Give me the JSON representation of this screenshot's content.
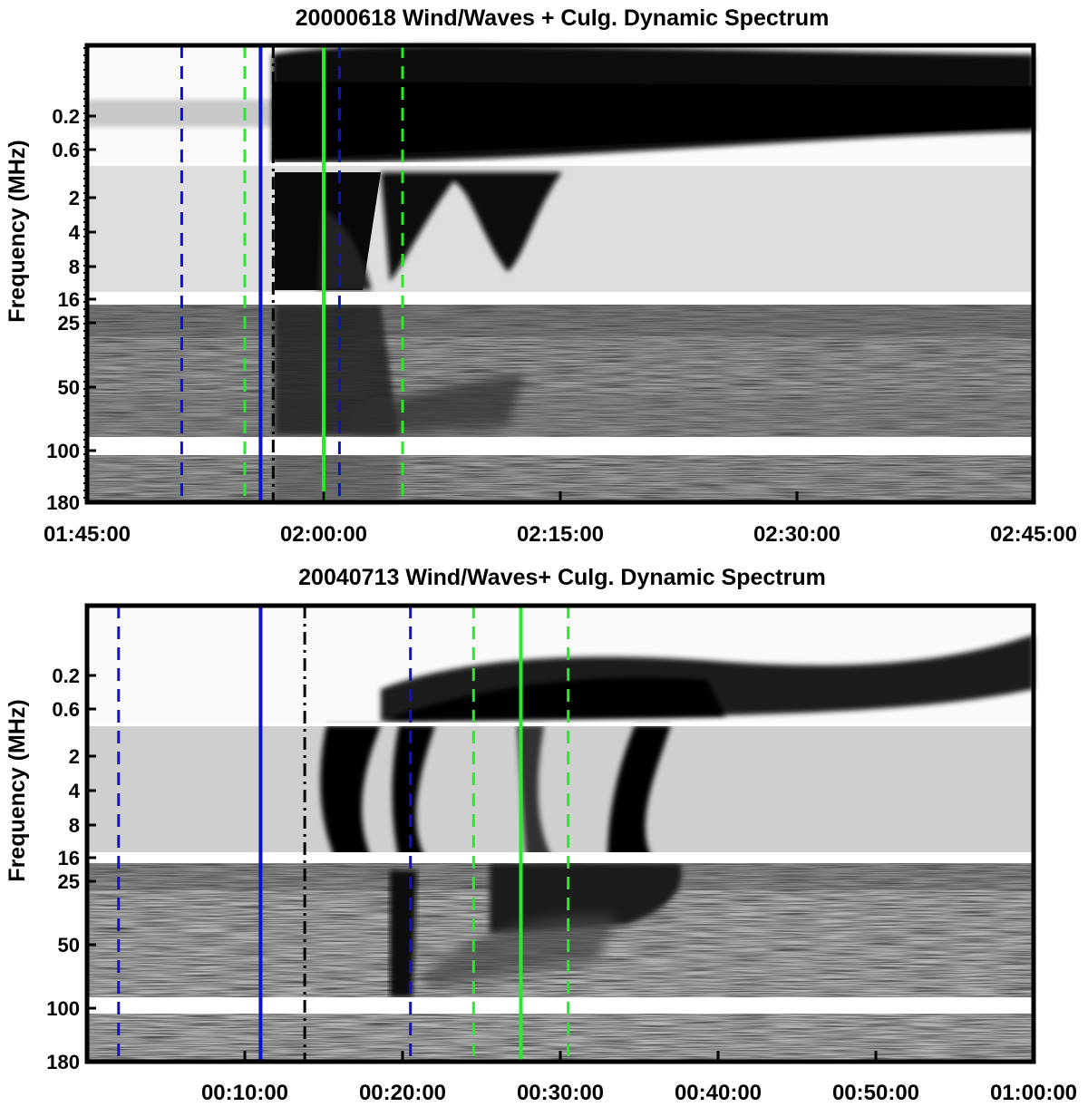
{
  "chart_data": [
    {
      "type": "heatmap",
      "title": "20000618 Wind/Waves + Culg. Dynamic Spectrum",
      "ylabel": "Frequency (MHz)",
      "xlabel": "",
      "x_tick_labels": [
        "01:45:00",
        "02:00:00",
        "02:15:00",
        "02:30:00",
        "02:45:00"
      ],
      "x_tick_minutes": [
        0,
        15,
        30,
        45,
        60
      ],
      "xlim_minutes": [
        0,
        60
      ],
      "y_tick_labels": [
        "0.2",
        "0.6",
        "2",
        "4",
        "8",
        "16",
        "25",
        "50",
        "100",
        "180"
      ],
      "colormap": "inverted grayscale",
      "vertical_lines": [
        {
          "time": "01:51:00",
          "minute": 6,
          "color": "#1010d0",
          "style": "dashed"
        },
        {
          "time": "01:55:00",
          "minute": 10,
          "color": "#22ee22",
          "style": "dashed"
        },
        {
          "time": "01:56:00",
          "minute": 11,
          "color": "#1010d0",
          "style": "solid"
        },
        {
          "time": "01:57:00",
          "minute": 11.8,
          "color": "#000000",
          "style": "dashdot"
        },
        {
          "time": "02:00:00",
          "minute": 15,
          "color": "#22ee22",
          "style": "solid"
        },
        {
          "time": "02:01:00",
          "minute": 16,
          "color": "#1010d0",
          "style": "dashed"
        },
        {
          "time": "02:05:00",
          "minute": 20,
          "color": "#22ee22",
          "style": "dashed"
        }
      ]
    },
    {
      "type": "heatmap",
      "title": "20040713 Wind/Waves+ Culg. Dynamic Spectrum",
      "ylabel": "Frequency (MHz)",
      "xlabel": "",
      "x_tick_labels": [
        "00:10:00",
        "00:20:00",
        "00:30:00",
        "00:40:00",
        "00:50:00",
        "01:00:00"
      ],
      "x_tick_minutes": [
        10,
        20,
        30,
        40,
        50,
        60
      ],
      "xlim_minutes": [
        0,
        60
      ],
      "y_tick_labels": [
        "0.2",
        "0.6",
        "2",
        "4",
        "8",
        "16",
        "25",
        "50",
        "100",
        "180"
      ],
      "colormap": "inverted grayscale",
      "vertical_lines": [
        {
          "time": "00:02:00",
          "minute": 2,
          "color": "#1010d0",
          "style": "dashed"
        },
        {
          "time": "00:11:00",
          "minute": 11,
          "color": "#1010d0",
          "style": "solid"
        },
        {
          "time": "00:14:00",
          "minute": 13.8,
          "color": "#000000",
          "style": "dashdot"
        },
        {
          "time": "00:21:00",
          "minute": 20.5,
          "color": "#1010d0",
          "style": "dashed"
        },
        {
          "time": "00:24:00",
          "minute": 24.5,
          "color": "#22ee22",
          "style": "dashed"
        },
        {
          "time": "00:27:00",
          "minute": 27.5,
          "color": "#22ee22",
          "style": "solid"
        },
        {
          "time": "00:30:00",
          "minute": 30.5,
          "color": "#22ee22",
          "style": "dashed"
        }
      ]
    }
  ]
}
